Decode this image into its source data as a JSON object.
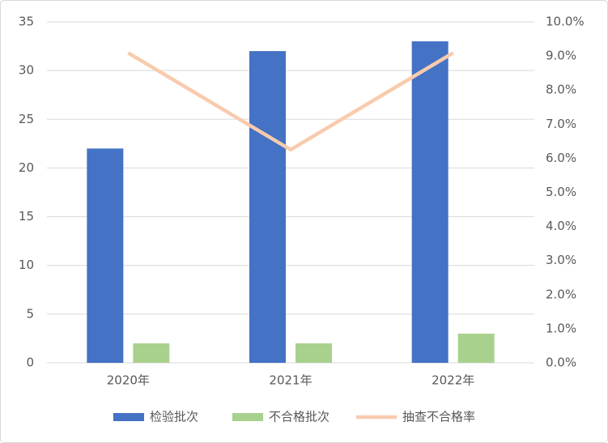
{
  "chart_data": {
    "type": "bar",
    "categories": [
      "2020年",
      "2021年",
      "2022年"
    ],
    "series": [
      {
        "name": "检验批次",
        "color": "#4472c4",
        "values": [
          22,
          32,
          33
        ]
      },
      {
        "name": "不合格批次",
        "color": "#a9d18e",
        "values": [
          2,
          2,
          3
        ]
      },
      {
        "name": "抽查不合格率",
        "color": "#f8cbad",
        "type": "line",
        "axis": "y2",
        "values": [
          9.09,
          6.25,
          9.09
        ]
      }
    ],
    "ylim": [
      0,
      35
    ],
    "yticks": [
      0,
      5,
      10,
      15,
      20,
      25,
      30,
      35
    ],
    "y2lim": [
      0,
      10
    ],
    "y2ticks": [
      {
        "value": 0,
        "label": "0.0%"
      },
      {
        "value": 1,
        "label": "1.0%"
      },
      {
        "value": 2,
        "label": "2.0%"
      },
      {
        "value": 3,
        "label": "3.0%"
      },
      {
        "value": 4,
        "label": "4.0%"
      },
      {
        "value": 5,
        "label": "5.0%"
      },
      {
        "value": 6,
        "label": "6.0%"
      },
      {
        "value": 7,
        "label": "7.0%"
      },
      {
        "value": 8,
        "label": "8.0%"
      },
      {
        "value": 9,
        "label": "9.0%"
      },
      {
        "value": 10,
        "label": "10.0%"
      }
    ],
    "grid": true,
    "legend": "bottom"
  }
}
